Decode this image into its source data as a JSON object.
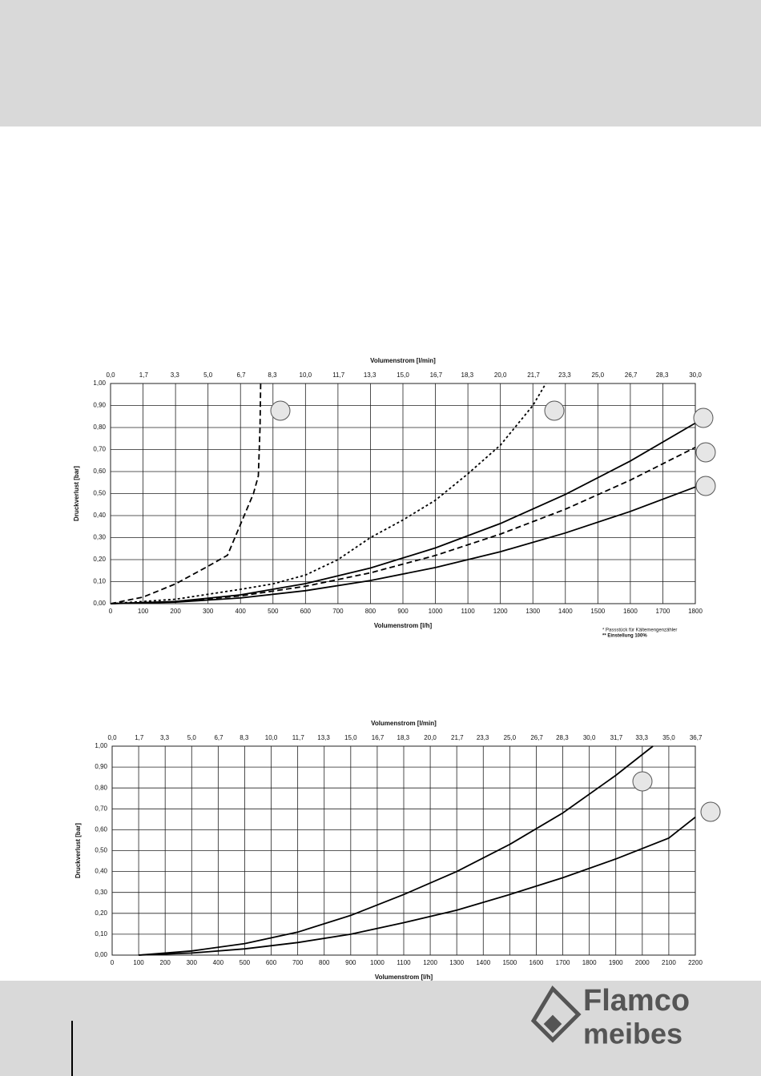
{
  "chart_data": [
    {
      "type": "line",
      "x2_label": "Volumenstrom [l/min]",
      "x_label": "Volumenstrom [l/h]",
      "y_label": "Druckverlust [bar]",
      "xlim": [
        0,
        1800
      ],
      "xticks": [
        0,
        100,
        200,
        300,
        400,
        500,
        600,
        700,
        800,
        900,
        1000,
        1100,
        1200,
        1300,
        1400,
        1500,
        1600,
        1700,
        1800
      ],
      "x2lim": [
        0,
        30
      ],
      "x2ticks": [
        {
          "value": 0,
          "label": "0,0"
        },
        {
          "value": 1.7,
          "label": "1,7"
        },
        {
          "value": 3.3,
          "label": "3,3"
        },
        {
          "value": 5,
          "label": "5,0"
        },
        {
          "value": 6.7,
          "label": "6,7"
        },
        {
          "value": 8.3,
          "label": "8,3"
        },
        {
          "value": 10,
          "label": "10,0"
        },
        {
          "value": 11.7,
          "label": "11,7"
        },
        {
          "value": 13.3,
          "label": "13,3"
        },
        {
          "value": 15,
          "label": "15,0"
        },
        {
          "value": 16.7,
          "label": "16,7"
        },
        {
          "value": 18.3,
          "label": "18,3"
        },
        {
          "value": 20,
          "label": "20,0"
        },
        {
          "value": 21.7,
          "label": "21,7"
        },
        {
          "value": 23.3,
          "label": "23,3"
        },
        {
          "value": 25,
          "label": "25,0"
        },
        {
          "value": 26.7,
          "label": "26,7"
        },
        {
          "value": 28.3,
          "label": "28,3"
        },
        {
          "value": 30,
          "label": "30,0"
        }
      ],
      "ylim": [
        0,
        1
      ],
      "yticks": [
        {
          "value": 0,
          "label": "0,00"
        },
        {
          "value": 0.1,
          "label": "0,10"
        },
        {
          "value": 0.2,
          "label": "0,20"
        },
        {
          "value": 0.3,
          "label": "0,30"
        },
        {
          "value": 0.4,
          "label": "0,40"
        },
        {
          "value": 0.5,
          "label": "0,50"
        },
        {
          "value": 0.6,
          "label": "0,60"
        },
        {
          "value": 0.7,
          "label": "0,70"
        },
        {
          "value": 0.8,
          "label": "0,80"
        },
        {
          "value": 0.9,
          "label": "0,90"
        },
        {
          "value": 1,
          "label": "1,00"
        }
      ],
      "grid": true,
      "series": [
        {
          "color": "#000000",
          "style": "dashed",
          "x": [
            0,
            100,
            200,
            300,
            360,
            400,
            440,
            455,
            460,
            462
          ],
          "values": [
            0,
            0.03,
            0.09,
            0.17,
            0.22,
            0.36,
            0.5,
            0.58,
            0.8,
            1.0
          ]
        },
        {
          "color": "#000000",
          "style": "dotted",
          "x": [
            0,
            200,
            400,
            500,
            600,
            700,
            800,
            900,
            1000,
            1100,
            1200,
            1300,
            1340
          ],
          "values": [
            0,
            0.02,
            0.065,
            0.09,
            0.13,
            0.2,
            0.3,
            0.38,
            0.47,
            0.59,
            0.72,
            0.9,
            1.0
          ]
        },
        {
          "color": "#000000",
          "style": "solid",
          "x": [
            0,
            200,
            400,
            600,
            800,
            1000,
            1200,
            1400,
            1600,
            1800
          ],
          "values": [
            0,
            0.01,
            0.04,
            0.091,
            0.162,
            0.253,
            0.364,
            0.496,
            0.648,
            0.82
          ]
        },
        {
          "color": "#000000",
          "style": "dashed",
          "x": [
            0,
            200,
            400,
            600,
            800,
            1000,
            1200,
            1400,
            1600,
            1800
          ],
          "values": [
            0,
            0.009,
            0.035,
            0.079,
            0.14,
            0.219,
            0.316,
            0.429,
            0.561,
            0.71
          ]
        },
        {
          "color": "#000000",
          "style": "solid",
          "x": [
            0,
            200,
            400,
            600,
            800,
            1000,
            1200,
            1400,
            1600,
            1800
          ],
          "values": [
            0,
            0.007,
            0.026,
            0.059,
            0.105,
            0.164,
            0.236,
            0.321,
            0.419,
            0.53
          ]
        }
      ],
      "notes": [
        "*  Passstück für Kältemengenzähler",
        "** Einstellung 100%"
      ]
    },
    {
      "type": "line",
      "x2_label": "Volumenstrom [l/min]",
      "x_label": "Volumenstrom [l/h]",
      "y_label": "Druckverlust [bar]",
      "xlim": [
        0,
        2200
      ],
      "xticks": [
        0,
        100,
        200,
        300,
        400,
        500,
        600,
        700,
        800,
        900,
        1000,
        1100,
        1200,
        1300,
        1400,
        1500,
        1600,
        1700,
        1800,
        1900,
        2000,
        2100,
        2200
      ],
      "x2lim": [
        0,
        36.667
      ],
      "x2ticks": [
        {
          "value": 0,
          "label": "0,0"
        },
        {
          "value": 1.7,
          "label": "1,7"
        },
        {
          "value": 3.3,
          "label": "3,3"
        },
        {
          "value": 5,
          "label": "5,0"
        },
        {
          "value": 6.7,
          "label": "6,7"
        },
        {
          "value": 8.3,
          "label": "8,3"
        },
        {
          "value": 10,
          "label": "10,0"
        },
        {
          "value": 11.7,
          "label": "11,7"
        },
        {
          "value": 13.3,
          "label": "13,3"
        },
        {
          "value": 15,
          "label": "15,0"
        },
        {
          "value": 16.7,
          "label": "16,7"
        },
        {
          "value": 18.3,
          "label": "18,3"
        },
        {
          "value": 20,
          "label": "20,0"
        },
        {
          "value": 21.7,
          "label": "21,7"
        },
        {
          "value": 23.3,
          "label": "23,3"
        },
        {
          "value": 25,
          "label": "25,0"
        },
        {
          "value": 26.7,
          "label": "26,7"
        },
        {
          "value": 28.3,
          "label": "28,3"
        },
        {
          "value": 30,
          "label": "30,0"
        },
        {
          "value": 31.7,
          "label": "31,7"
        },
        {
          "value": 33.3,
          "label": "33,3"
        },
        {
          "value": 35,
          "label": "35,0"
        },
        {
          "value": 36.7,
          "label": "36,7"
        }
      ],
      "ylim": [
        0,
        1
      ],
      "yticks": [
        {
          "value": 0,
          "label": "0,00"
        },
        {
          "value": 0.1,
          "label": "0,10"
        },
        {
          "value": 0.2,
          "label": "0,20"
        },
        {
          "value": 0.3,
          "label": "0,30"
        },
        {
          "value": 0.4,
          "label": "0,40"
        },
        {
          "value": 0.5,
          "label": "0,50"
        },
        {
          "value": 0.6,
          "label": "0,60"
        },
        {
          "value": 0.7,
          "label": "0,70"
        },
        {
          "value": 0.8,
          "label": "0,80"
        },
        {
          "value": 0.9,
          "label": "0,90"
        },
        {
          "value": 1,
          "label": "1,00"
        }
      ],
      "grid": true,
      "series": [
        {
          "color": "#000000",
          "style": "solid",
          "x": [
            100,
            300,
            500,
            700,
            900,
            1100,
            1300,
            1500,
            1700,
            1900,
            2040
          ],
          "values": [
            0,
            0.02,
            0.055,
            0.11,
            0.19,
            0.29,
            0.4,
            0.53,
            0.68,
            0.86,
            1.0
          ]
        },
        {
          "color": "#000000",
          "style": "solid",
          "x": [
            100,
            300,
            500,
            700,
            900,
            1100,
            1300,
            1500,
            1700,
            1900,
            2100,
            2200
          ],
          "values": [
            0,
            0.01,
            0.03,
            0.06,
            0.1,
            0.155,
            0.215,
            0.29,
            0.37,
            0.46,
            0.56,
            0.66
          ]
        }
      ]
    }
  ],
  "footer": {
    "brand": [
      "Flamco",
      "meibes"
    ]
  }
}
